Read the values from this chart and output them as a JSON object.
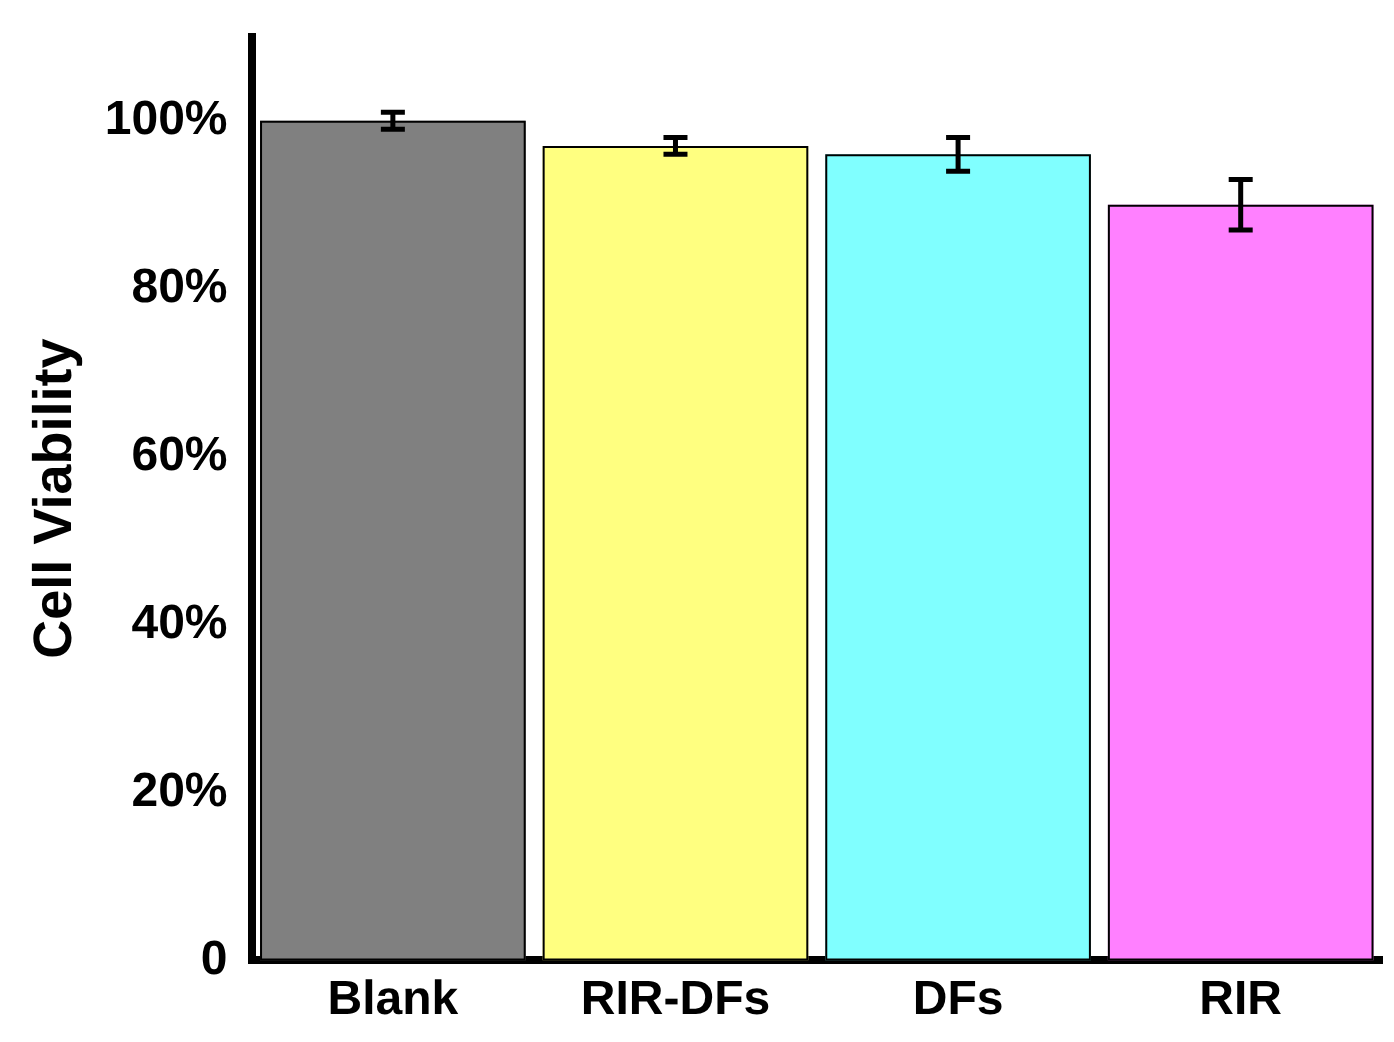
{
  "chart_data": {
    "type": "bar",
    "ylabel": "Cell Viability",
    "categories": [
      "Blank",
      "RIR-DFs",
      "DFs",
      "RIR"
    ],
    "values": [
      100,
      97,
      96,
      90
    ],
    "errors": [
      1,
      1,
      2,
      3
    ],
    "colors": [
      "#808080",
      "#ffff80",
      "#80ffff",
      "#ff80ff"
    ],
    "ylim": [
      0,
      110
    ],
    "yticks": [
      0,
      {
        "value": 20,
        "label": "20%"
      },
      {
        "value": 40,
        "label": "40%"
      },
      {
        "value": 60,
        "label": "60%"
      },
      {
        "value": 80,
        "label": "80%"
      },
      {
        "value": 100,
        "label": "100%"
      }
    ],
    "grid": false,
    "legend": false
  }
}
